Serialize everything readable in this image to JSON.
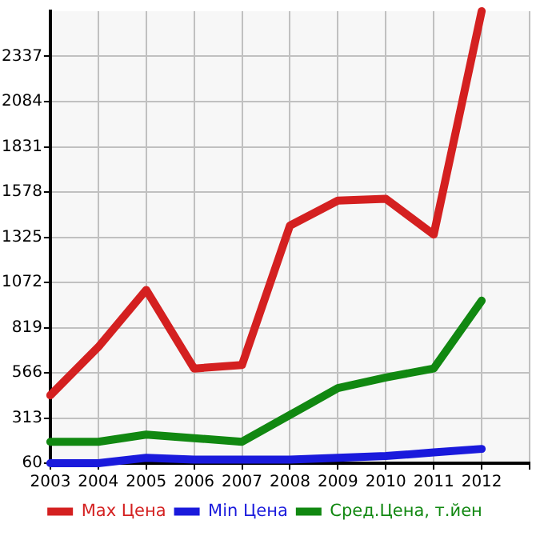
{
  "chart_data": {
    "type": "line",
    "x": [
      2003,
      2004,
      2005,
      2006,
      2007,
      2008,
      2009,
      2010,
      2011,
      2012
    ],
    "xlim": [
      2003,
      2013
    ],
    "xticks": [
      2003,
      2004,
      2005,
      2006,
      2007,
      2008,
      2009,
      2010,
      2011,
      2012,
      {
        "value": 2013,
        "label": null
      }
    ],
    "ylim": [
      60,
      2590
    ],
    "yticks": [
      60,
      313,
      566,
      819,
      1072,
      1325,
      1578,
      1831,
      2084,
      2337
    ],
    "grid": true,
    "legend": "bottom",
    "marker": "none",
    "line_style": "solid",
    "series": [
      {
        "name": "Max Цена",
        "color": "#d42020",
        "values": [
          440,
          710,
          1030,
          590,
          610,
          1390,
          1530,
          1540,
          1340,
          2590
        ]
      },
      {
        "name": "Min Цена",
        "color": "#1a1adc",
        "values": [
          60,
          60,
          90,
          80,
          80,
          80,
          90,
          100,
          120,
          140
        ]
      },
      {
        "name": "Сред.Цена, т.йен",
        "color": "#118811",
        "values": [
          180,
          180,
          220,
          200,
          180,
          330,
          480,
          540,
          590,
          970
        ]
      }
    ]
  }
}
